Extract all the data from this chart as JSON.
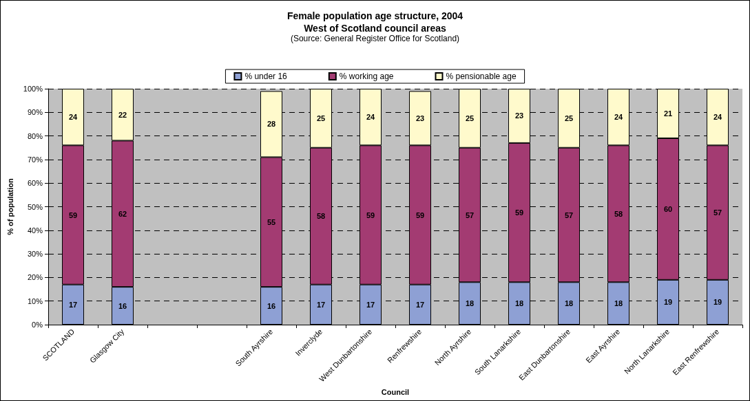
{
  "chart_data": {
    "type": "bar",
    "stacked": true,
    "title": "Female population age structure, 2004\nWest of Scotland council areas",
    "subtitle": "(Source: General Register Office for Scotland)",
    "xlabel": "Council",
    "ylabel": "% of population",
    "categories": [
      "SCOTLAND",
      "Glasgow City",
      null,
      null,
      "South Ayrshire",
      "Inverclyde",
      "West Dunbartonshire",
      "Renfrewshire",
      "North Ayrshire",
      "South Lanarkshire",
      "East Dunbartonshire",
      "East Ayrshire",
      "North Lanarkshire",
      "East Renfrewshire"
    ],
    "series": [
      {
        "name": "% under 16",
        "color": "#8ea0d4",
        "values": [
          17,
          16,
          null,
          null,
          16,
          17,
          17,
          17,
          18,
          18,
          18,
          18,
          19,
          19
        ]
      },
      {
        "name": "% working age",
        "color": "#a33b72",
        "values": [
          59,
          62,
          null,
          null,
          55,
          58,
          59,
          59,
          57,
          59,
          57,
          58,
          60,
          57
        ]
      },
      {
        "name": "% pensionable age",
        "color": "#fffacc",
        "values": [
          24,
          22,
          null,
          null,
          28,
          25,
          24,
          23,
          25,
          23,
          25,
          24,
          21,
          24
        ]
      }
    ],
    "ylim": [
      0,
      100
    ],
    "yticks": [
      {
        "value": 0,
        "label": "0%"
      },
      {
        "value": 10,
        "label": "10%"
      },
      {
        "value": 20,
        "label": "20%"
      },
      {
        "value": 30,
        "label": "30%"
      },
      {
        "value": 40,
        "label": "40%"
      },
      {
        "value": 50,
        "label": "50%"
      },
      {
        "value": 60,
        "label": "60%"
      },
      {
        "value": 70,
        "label": "70%"
      },
      {
        "value": 80,
        "label": "80%"
      },
      {
        "value": 90,
        "label": "90%"
      },
      {
        "value": 100,
        "label": "100%"
      }
    ],
    "grid": "y",
    "legend": "top",
    "data_labels": true
  }
}
